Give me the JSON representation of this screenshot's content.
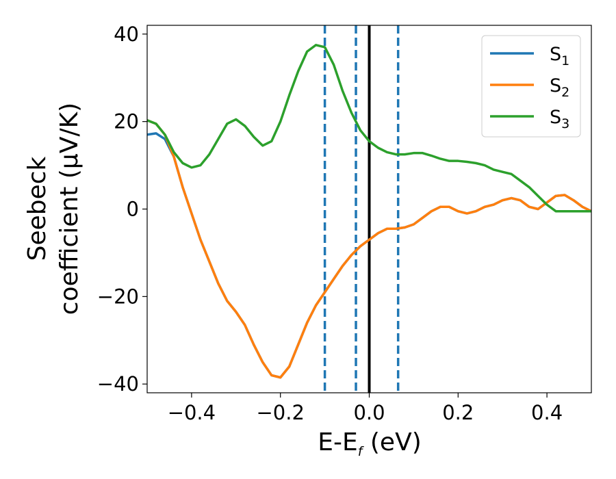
{
  "chart_data": {
    "type": "line",
    "xlabel_main": "E-E",
    "xlabel_sub": "f",
    "xlabel_unit": " (eV)",
    "ylabel_line1": "Seebeck",
    "ylabel_line2": "coefficient  (μV/K)",
    "xlim": [
      -0.5,
      0.5
    ],
    "ylim": [
      -42,
      42
    ],
    "xticks": [
      -0.4,
      -0.2,
      0.0,
      0.2,
      0.4
    ],
    "xtick_labels": [
      "−0.4",
      "−0.2",
      "0.0",
      "0.2",
      "0.4"
    ],
    "yticks": [
      -40,
      -20,
      0,
      20,
      40
    ],
    "ytick_labels": [
      "−40",
      "−20",
      "0",
      "20",
      "40"
    ],
    "grid": false,
    "legend_position": "top-right",
    "vlines": [
      {
        "x": 0.0,
        "style": "solid",
        "color": "#000000"
      },
      {
        "x": -0.1,
        "style": "dashed",
        "color": "#1f77b4"
      },
      {
        "x": -0.03,
        "style": "dashed",
        "color": "#1f77b4"
      },
      {
        "x": 0.065,
        "style": "dashed",
        "color": "#1f77b4"
      }
    ],
    "series": [
      {
        "name": "S",
        "sub": "1",
        "color": "#1f77b4",
        "x": [
          -0.5,
          -0.48,
          -0.46,
          -0.44,
          -0.42,
          -0.4,
          -0.38,
          -0.36,
          -0.34,
          -0.32,
          -0.3,
          -0.28,
          -0.26,
          -0.24,
          -0.22,
          -0.2,
          -0.18,
          -0.16,
          -0.14,
          -0.12,
          -0.1,
          -0.08,
          -0.06,
          -0.04,
          -0.02,
          0.0,
          0.02,
          0.04,
          0.06,
          0.08,
          0.1,
          0.12,
          0.14,
          0.16,
          0.18,
          0.2,
          0.22,
          0.24,
          0.26,
          0.28,
          0.3,
          0.32,
          0.34,
          0.36,
          0.38,
          0.4,
          0.42,
          0.44,
          0.46,
          0.48,
          0.5
        ],
        "y": [
          17,
          17.3,
          16,
          12,
          5,
          -1,
          -7,
          -12,
          -17,
          -21,
          -23.5,
          -26.5,
          -31,
          -35,
          -38,
          -38.5,
          -36,
          -31,
          -26,
          -22,
          -19,
          -16,
          -13,
          -10.5,
          -8.5,
          -7,
          -5.5,
          -4.5,
          -4.5,
          -4.2,
          -3.5,
          -2,
          -0.5,
          0.5,
          0.5,
          -0.5,
          -1,
          -0.5,
          0.5,
          1,
          2,
          2.5,
          2,
          0.5,
          0,
          1.5,
          3,
          3.2,
          2,
          0.5,
          -0.5
        ]
      },
      {
        "name": "S",
        "sub": "2",
        "color": "#ff7f0e",
        "x": [
          -0.5,
          -0.48,
          -0.46,
          -0.44,
          -0.42,
          -0.4,
          -0.38,
          -0.36,
          -0.34,
          -0.32,
          -0.3,
          -0.28,
          -0.26,
          -0.24,
          -0.22,
          -0.2,
          -0.18,
          -0.16,
          -0.14,
          -0.12,
          -0.1,
          -0.08,
          -0.06,
          -0.04,
          -0.02,
          0.0,
          0.02,
          0.04,
          0.06,
          0.08,
          0.1,
          0.12,
          0.14,
          0.16,
          0.18,
          0.2,
          0.22,
          0.24,
          0.26,
          0.28,
          0.3,
          0.32,
          0.34,
          0.36,
          0.38,
          0.4,
          0.42,
          0.44,
          0.46,
          0.48,
          0.5
        ],
        "y": [
          20.3,
          19.5,
          17,
          12,
          5,
          -1,
          -7,
          -12,
          -17,
          -21,
          -23.5,
          -26.5,
          -31,
          -35,
          -38,
          -38.5,
          -36,
          -31,
          -26,
          -22,
          -19,
          -16,
          -13,
          -10.5,
          -8.5,
          -7,
          -5.5,
          -4.5,
          -4.5,
          -4.2,
          -3.5,
          -2,
          -0.5,
          0.5,
          0.5,
          -0.5,
          -1,
          -0.5,
          0.5,
          1,
          2,
          2.5,
          2,
          0.5,
          0,
          1.5,
          3,
          3.2,
          2,
          0.5,
          -0.5
        ]
      },
      {
        "name": "S",
        "sub": "3",
        "color": "#2ca02c",
        "x": [
          -0.5,
          -0.48,
          -0.46,
          -0.44,
          -0.42,
          -0.4,
          -0.38,
          -0.36,
          -0.34,
          -0.32,
          -0.3,
          -0.28,
          -0.26,
          -0.24,
          -0.22,
          -0.2,
          -0.18,
          -0.16,
          -0.14,
          -0.12,
          -0.1,
          -0.08,
          -0.06,
          -0.04,
          -0.02,
          0.0,
          0.02,
          0.04,
          0.06,
          0.08,
          0.1,
          0.12,
          0.14,
          0.16,
          0.18,
          0.2,
          0.22,
          0.24,
          0.26,
          0.28,
          0.3,
          0.32,
          0.34,
          0.36,
          0.38,
          0.4,
          0.42,
          0.44,
          0.46,
          0.48,
          0.5
        ],
        "y": [
          20.3,
          19.5,
          17,
          13,
          10.5,
          9.5,
          10,
          12.5,
          16,
          19.5,
          20.5,
          19,
          16.5,
          14.5,
          15.5,
          20,
          26,
          31.5,
          36,
          37.5,
          37,
          33,
          27,
          22,
          18,
          15.5,
          14,
          13,
          12.5,
          12.5,
          12.8,
          12.8,
          12.2,
          11.5,
          11,
          11,
          10.8,
          10.5,
          10,
          9,
          8.5,
          8,
          6.5,
          5,
          3,
          1,
          -0.5,
          -0.5,
          -0.5,
          -0.5,
          -0.5
        ]
      }
    ]
  }
}
